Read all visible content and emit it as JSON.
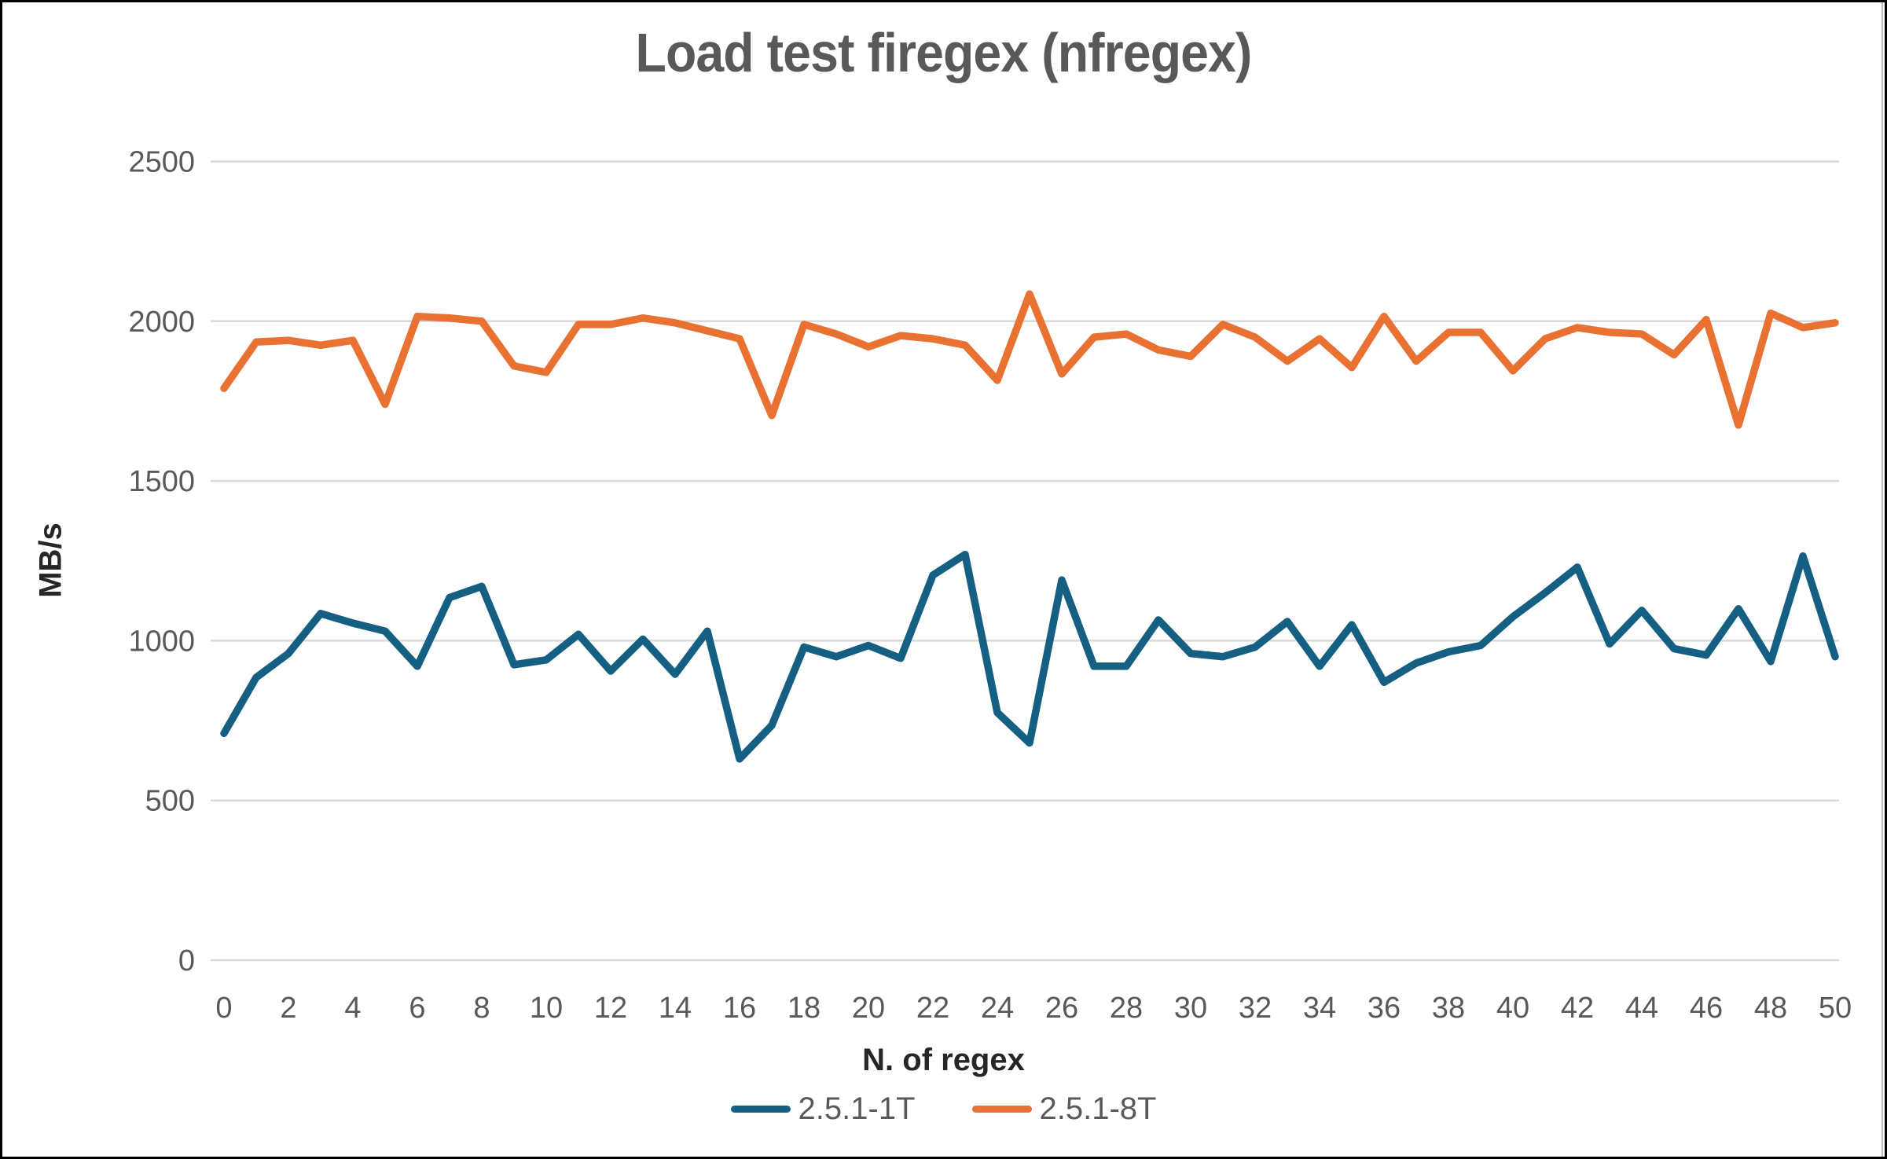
{
  "frame": {
    "background": "#FFFFFF",
    "border_color": "#000000"
  },
  "chart_data": {
    "type": "line",
    "title": "Load test firegex (nfregex)",
    "xlabel": "N. of regex",
    "ylabel": "MB/s",
    "xlim": [
      0,
      50
    ],
    "ylim": [
      0,
      2500
    ],
    "xticks": [
      0,
      2,
      4,
      6,
      8,
      10,
      12,
      14,
      16,
      18,
      20,
      22,
      24,
      26,
      28,
      30,
      32,
      34,
      36,
      38,
      40,
      42,
      44,
      46,
      48,
      50
    ],
    "yticks": [
      0,
      500,
      1000,
      1500,
      2000,
      2500
    ],
    "grid": "horizontal",
    "legend_position": "bottom-center",
    "x": [
      0,
      1,
      2,
      3,
      4,
      5,
      6,
      7,
      8,
      9,
      10,
      11,
      12,
      13,
      14,
      15,
      16,
      17,
      18,
      19,
      20,
      21,
      22,
      23,
      24,
      25,
      26,
      27,
      28,
      29,
      30,
      31,
      32,
      33,
      34,
      35,
      36,
      37,
      38,
      39,
      40,
      41,
      42,
      43,
      44,
      45,
      46,
      47,
      48,
      49,
      50
    ],
    "series": [
      {
        "name": "2.5.1-1T",
        "color": "#156082",
        "values": [
          710,
          885,
          960,
          1085,
          1055,
          1030,
          920,
          1135,
          1170,
          925,
          940,
          1020,
          905,
          1005,
          895,
          1030,
          630,
          735,
          980,
          950,
          985,
          945,
          1205,
          1270,
          775,
          680,
          1190,
          920,
          920,
          1065,
          960,
          950,
          980,
          1060,
          920,
          1050,
          870,
          930,
          965,
          985,
          1075,
          1150,
          1230,
          990,
          1095,
          975,
          955,
          1100,
          935,
          1265,
          950
        ]
      },
      {
        "name": "2.5.1-8T",
        "color": "#E97132",
        "values": [
          1790,
          1935,
          1940,
          1925,
          1940,
          1740,
          2015,
          2010,
          2000,
          1860,
          1840,
          1990,
          1990,
          2010,
          1995,
          1970,
          1945,
          1705,
          1990,
          1960,
          1920,
          1955,
          1945,
          1925,
          1815,
          2085,
          1835,
          1950,
          1960,
          1910,
          1890,
          1990,
          1950,
          1875,
          1945,
          1855,
          2015,
          1875,
          1965,
          1965,
          1845,
          1945,
          1980,
          1965,
          1960,
          1895,
          2005,
          1675,
          2025,
          1980,
          1995
        ]
      }
    ],
    "style": {
      "grid_color": "#D9D9D9",
      "tick_label_color": "#595959",
      "title_color": "#595959",
      "axis_title_color": "#262626",
      "legend_label_color": "#595959",
      "line_width": 9.5,
      "tick_font_size": 38
    }
  }
}
